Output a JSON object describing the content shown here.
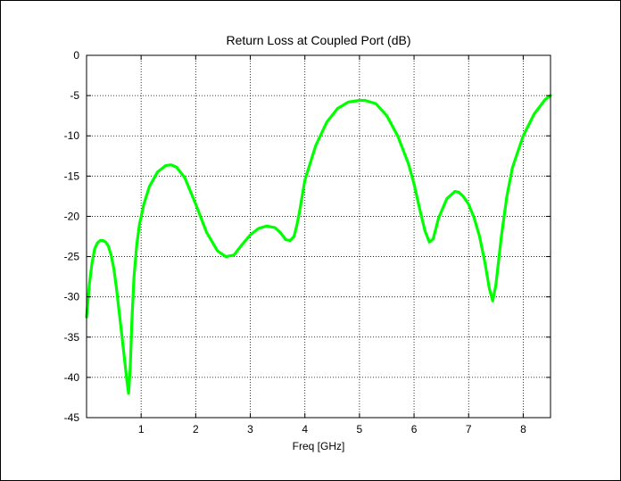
{
  "chart_data": {
    "type": "line",
    "title": "Return Loss at Coupled Port (dB)",
    "xlabel": "Freq [GHz]",
    "ylabel": "",
    "xlim": [
      0,
      8.5
    ],
    "ylim": [
      -45,
      0
    ],
    "xticks": [
      1,
      2,
      3,
      4,
      5,
      6,
      7,
      8
    ],
    "yticks": [
      0,
      -5,
      -10,
      -15,
      -20,
      -25,
      -30,
      -35,
      -40,
      -45
    ],
    "grid": true,
    "grid_style": "dotted",
    "line_color": "#00ff00",
    "series": [
      {
        "x": [
          0,
          0.05,
          0.1,
          0.15,
          0.2,
          0.25,
          0.3,
          0.35,
          0.4,
          0.45,
          0.5,
          0.55,
          0.6,
          0.65,
          0.7,
          0.74,
          0.77,
          0.8,
          0.83,
          0.87,
          0.92,
          0.97,
          1.05,
          1.15,
          1.3,
          1.45,
          1.55,
          1.65,
          1.8,
          2.0,
          2.2,
          2.4,
          2.55,
          2.7,
          2.85,
          3.0,
          3.15,
          3.3,
          3.45,
          3.55,
          3.65,
          3.73,
          3.8,
          3.85,
          3.9,
          4.0,
          4.2,
          4.4,
          4.6,
          4.8,
          5.0,
          5.1,
          5.3,
          5.5,
          5.7,
          5.9,
          6.0,
          6.1,
          6.2,
          6.28,
          6.35,
          6.45,
          6.6,
          6.75,
          6.82,
          6.9,
          7.0,
          7.1,
          7.2,
          7.3,
          7.38,
          7.44,
          7.5,
          7.6,
          7.7,
          7.8,
          8.0,
          8.2,
          8.4,
          8.5
        ],
        "y": [
          -32.5,
          -28.5,
          -25.8,
          -24.0,
          -23.3,
          -23.0,
          -23.0,
          -23.2,
          -23.7,
          -24.8,
          -26.5,
          -29.0,
          -32.0,
          -35.0,
          -38.0,
          -40.5,
          -42.0,
          -39.0,
          -33.0,
          -27.5,
          -23.5,
          -21.0,
          -18.5,
          -16.3,
          -14.5,
          -13.7,
          -13.6,
          -13.9,
          -15.2,
          -18.5,
          -22.0,
          -24.3,
          -25.0,
          -24.8,
          -23.5,
          -22.3,
          -21.5,
          -21.2,
          -21.4,
          -22.0,
          -22.9,
          -23.0,
          -22.5,
          -21.2,
          -19.5,
          -15.5,
          -11.2,
          -8.3,
          -6.6,
          -5.8,
          -5.6,
          -5.6,
          -6.0,
          -7.5,
          -10.0,
          -13.5,
          -16.0,
          -19.0,
          -21.8,
          -23.2,
          -22.8,
          -20.2,
          -17.8,
          -16.9,
          -17.0,
          -17.5,
          -18.5,
          -20.2,
          -22.5,
          -25.8,
          -29.0,
          -30.5,
          -28.5,
          -22.5,
          -17.5,
          -14.0,
          -10.0,
          -7.3,
          -5.5,
          -5.0
        ]
      }
    ]
  }
}
